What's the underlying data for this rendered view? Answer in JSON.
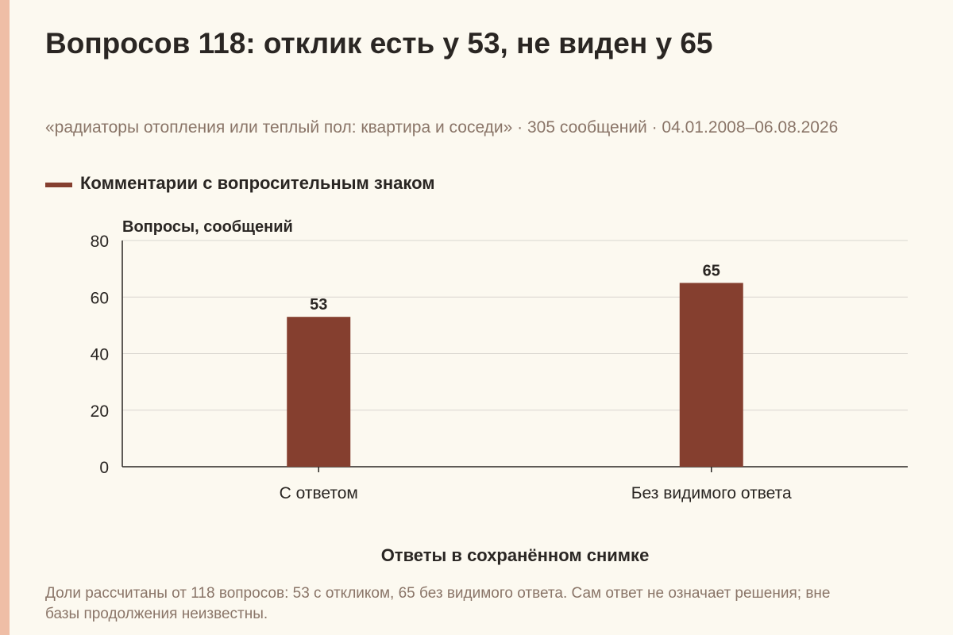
{
  "header": {
    "title": "Вопросов 118: отклик есть у 53, не виден у 65",
    "subtitle": "«радиаторы отопления или теплый пол: квартира и соседи» · 305 сообщений · 04.01.2008–06.08.2026"
  },
  "footnote": "Доли рассчитаны от 118 вопросов: 53 с откликом, 65 без видимого ответа. Сам ответ не означает решения; вне базы продолжения неизвестны.",
  "colors": {
    "accent_strip": "#efbea6",
    "bar": "#853f2f",
    "grid": "#d9d6cf",
    "axis": "#2a2623"
  },
  "chart_data": {
    "type": "bar",
    "categories": [
      "С ответом",
      "Без видимого ответа"
    ],
    "series": [
      {
        "name": "Комментарии с вопросительным знаком",
        "values": [
          53,
          65
        ]
      }
    ],
    "xlabel": "Ответы в сохранённом снимке",
    "ylabel": "Вопросы, сообщений",
    "ylim": [
      0,
      80
    ],
    "yticks": [
      0,
      20,
      40,
      60,
      80
    ],
    "grid": true,
    "legend": "top-left",
    "data_labels": true
  }
}
